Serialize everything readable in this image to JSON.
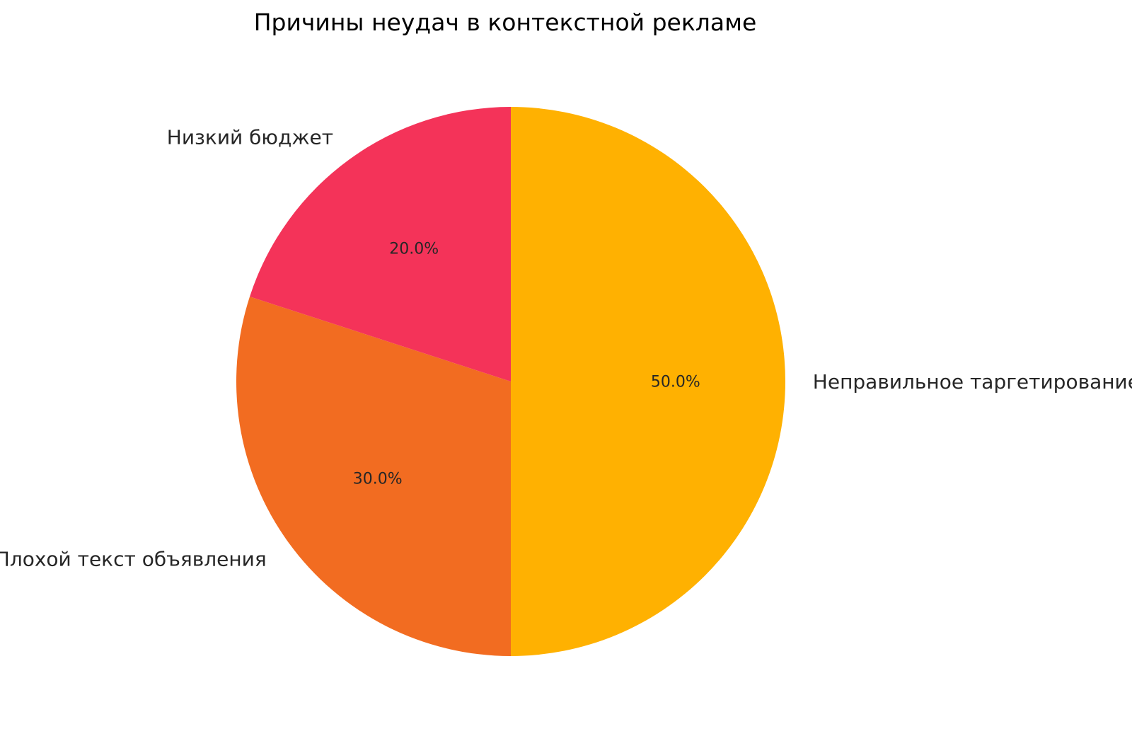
{
  "page": {
    "background": "#ffffff"
  },
  "chart_data": {
    "type": "pie",
    "title": "Причины неудач в контекстной рекламе",
    "slices": [
      {
        "label": "Неправильное таргетирование",
        "value": 50.0,
        "pct_label": "50.0%",
        "color": "#FFB101"
      },
      {
        "label": "Плохой текст объявления",
        "value": 30.0,
        "pct_label": "30.0%",
        "color": "#F26C21"
      },
      {
        "label": "Низкий бюджет",
        "value": 20.0,
        "pct_label": "20.0%",
        "color": "#F43359"
      }
    ],
    "layout": {
      "start_angle": "top",
      "direction": "clockwise",
      "label_distance": 1.1,
      "pct_distance": 0.6,
      "legend": "none",
      "grid": "off",
      "text_color": "#262626",
      "background": "#ffffff"
    }
  }
}
